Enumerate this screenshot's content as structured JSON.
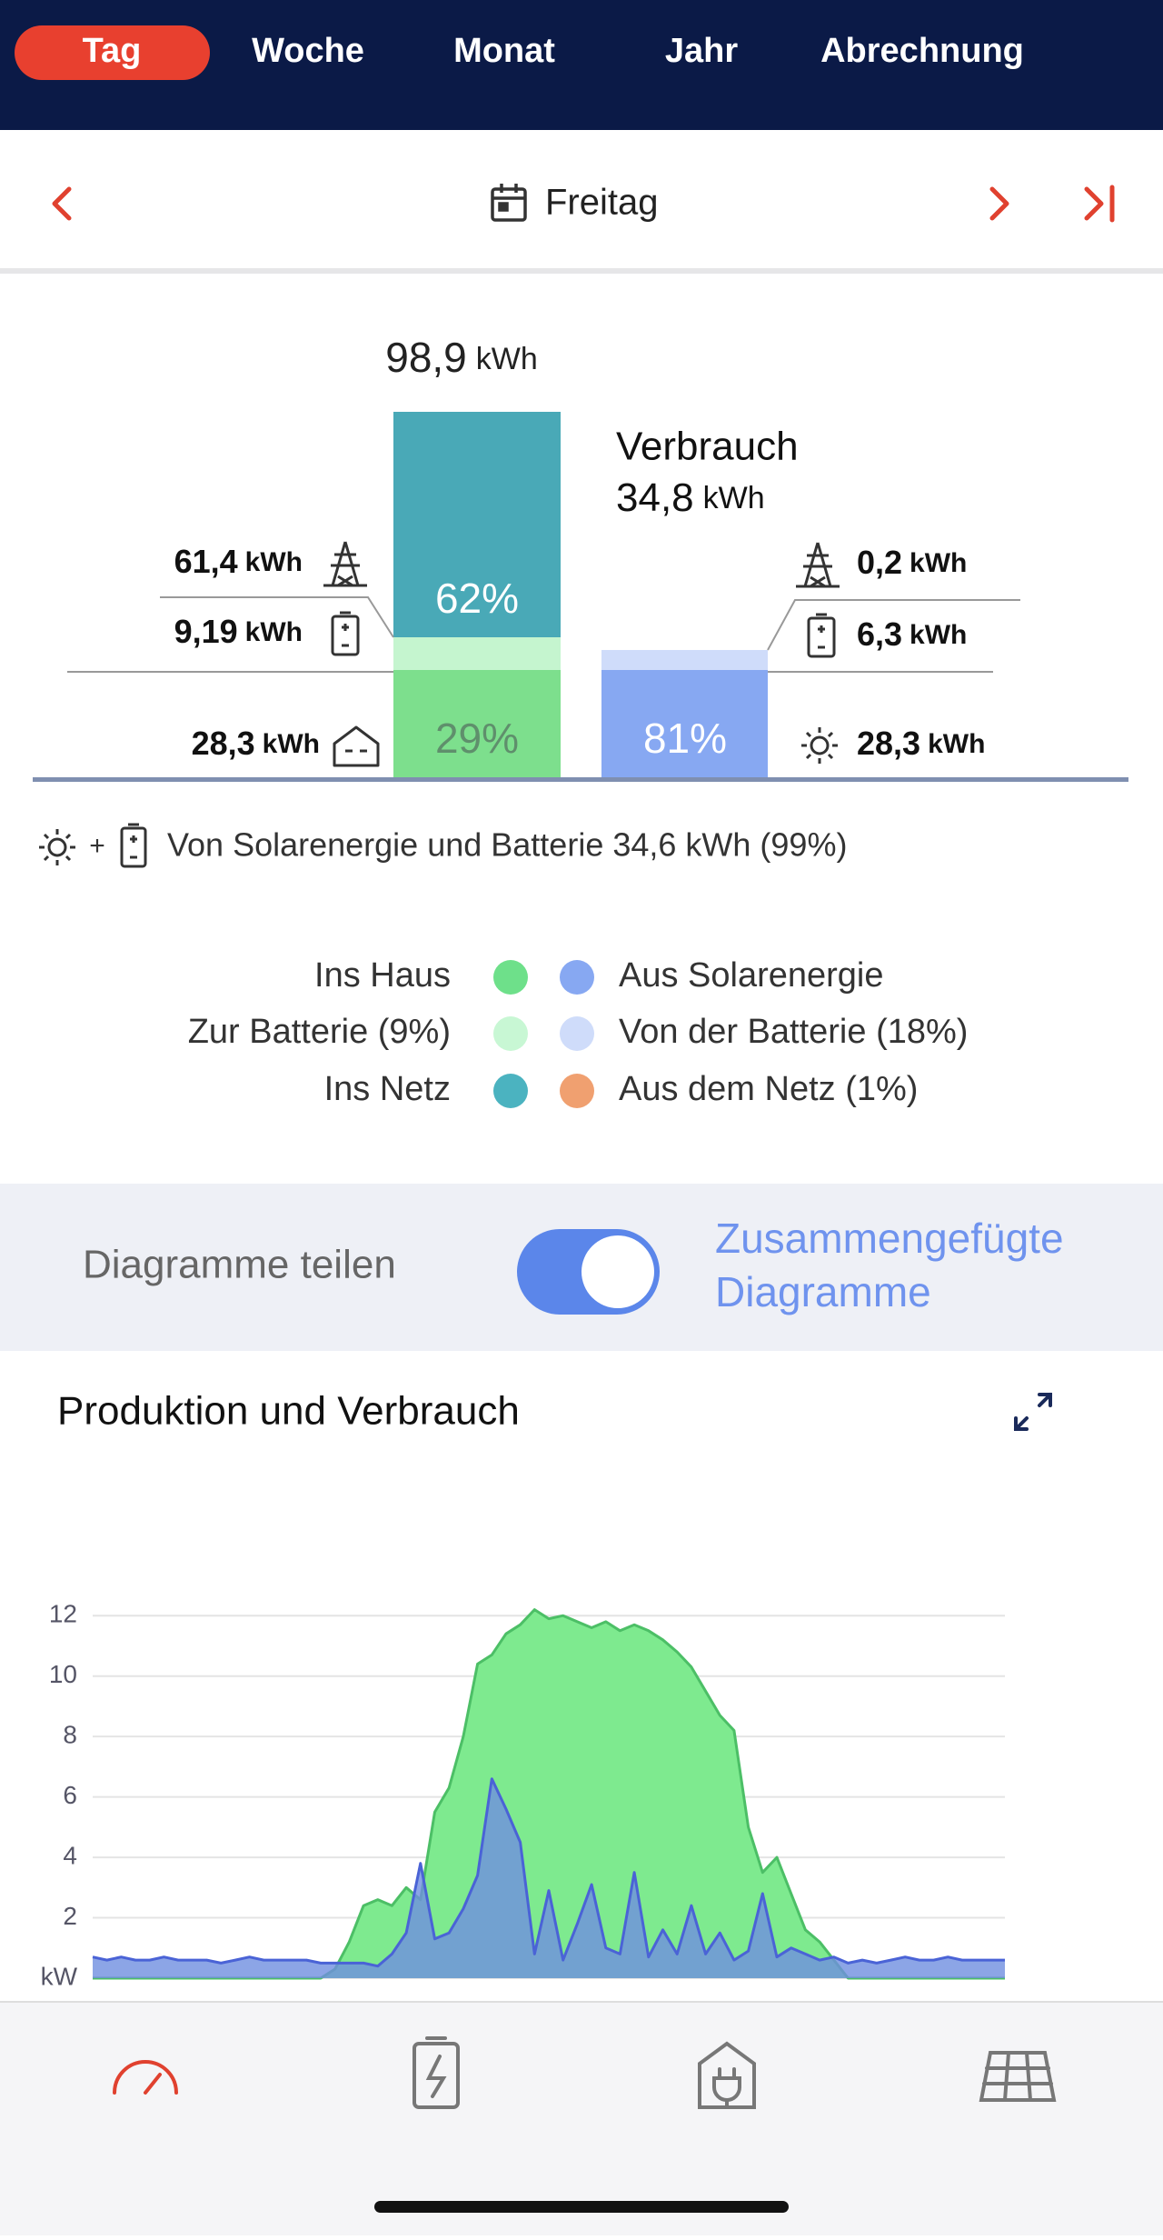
{
  "nav": {
    "tabs": [
      "Tag",
      "Woche",
      "Monat",
      "Jahr",
      "Abrechnung"
    ]
  },
  "date": {
    "label": "Freitag"
  },
  "unit": "kWh",
  "production": {
    "total": "98,9",
    "to_grid": "61,4",
    "to_battery": "9,19",
    "to_house": "28,3",
    "pct_grid": "62%",
    "pct_house": "29%"
  },
  "consumption": {
    "title": "Verbrauch",
    "total": "34,8",
    "from_grid": "0,2",
    "from_battery": "6,3",
    "from_solar": "28,3",
    "pct_solar": "81%"
  },
  "self_supply": {
    "plus": "+",
    "text": "Von Solarenergie und Batterie 34,6 kWh (99%)"
  },
  "legend": {
    "left": [
      "Ins Haus",
      "Zur Batterie (9%)",
      "Ins Netz"
    ],
    "right": [
      "Aus Solarenergie",
      "Von der Batterie (18%)",
      "Aus dem Netz (1%)"
    ]
  },
  "toggle": {
    "left": "Diagramme teilen",
    "right_lines": [
      "Zusammengefügte",
      "Diagramme"
    ]
  },
  "chart_data": {
    "type": "area",
    "title": "Produktion und Verbrauch",
    "categories": [
      null,
      null,
      null,
      null,
      null,
      null,
      null,
      null,
      null,
      null,
      null,
      null,
      null,
      null,
      null,
      null,
      null,
      null,
      null,
      null,
      null,
      null,
      null,
      null,
      null,
      null,
      null,
      null,
      null,
      null,
      null,
      null,
      null,
      null,
      null,
      null,
      null,
      null,
      null,
      null,
      null,
      null,
      null,
      null,
      null,
      null,
      null,
      null,
      null,
      null,
      null,
      null,
      null,
      null,
      null,
      null,
      null,
      null,
      null,
      null,
      null,
      null,
      null,
      null,
      null
    ],
    "series": [
      {
        "color": "#7eea8f",
        "values": [
          0,
          0,
          0,
          0,
          0,
          0,
          0,
          0,
          0,
          0,
          0,
          0,
          0,
          0,
          0,
          0,
          0,
          0.3,
          1.2,
          2.4,
          2.6,
          2.4,
          3.0,
          2.6,
          5.5,
          6.3,
          8.0,
          10.4,
          10.7,
          11.4,
          11.7,
          12.2,
          11.9,
          12.0,
          11.8,
          11.6,
          11.8,
          11.5,
          11.7,
          11.5,
          11.2,
          10.8,
          10.3,
          9.5,
          8.7,
          8.2,
          5.0,
          3.5,
          4.0,
          2.8,
          1.6,
          1.2,
          0.6,
          0,
          0,
          0,
          0,
          0,
          0,
          0,
          0,
          0,
          0,
          0,
          0
        ]
      },
      {
        "color": "#6f8fe0",
        "values": [
          0.7,
          0.6,
          0.7,
          0.6,
          0.6,
          0.7,
          0.6,
          0.6,
          0.6,
          0.5,
          0.6,
          0.7,
          0.6,
          0.6,
          0.6,
          0.6,
          0.5,
          0.5,
          0.5,
          0.5,
          0.4,
          0.8,
          1.5,
          3.8,
          1.3,
          1.5,
          2.3,
          3.4,
          6.6,
          5.6,
          4.5,
          0.8,
          2.9,
          0.6,
          1.8,
          3.1,
          1.0,
          0.8,
          3.5,
          0.7,
          1.6,
          0.8,
          2.4,
          0.8,
          1.5,
          0.6,
          0.9,
          2.8,
          0.7,
          1.0,
          0.8,
          0.6,
          0.7,
          0.5,
          0.6,
          0.5,
          0.6,
          0.7,
          0.6,
          0.6,
          0.7,
          0.6,
          0.6,
          0.6,
          0.6
        ]
      }
    ],
    "ylim": [
      0,
      13
    ],
    "yticks": [
      {
        "value": 0,
        "label": "kW"
      },
      2,
      4,
      6,
      8,
      10,
      12
    ],
    "grid": true
  }
}
